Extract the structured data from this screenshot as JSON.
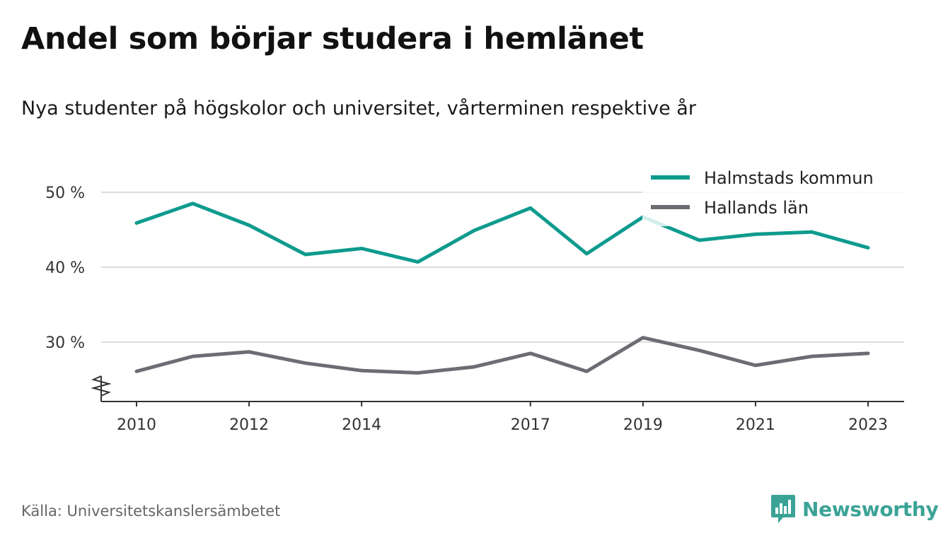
{
  "header": {
    "title": "Andel som börjar studera i hemlänet",
    "subtitle": "Nya studenter på högskolor och universitet, vårterminen respektive år"
  },
  "footer": {
    "source": "Källa: Universitetskanslersämbetet",
    "brand": "Newsworthy",
    "brand_icon": "bar-chart-speech-bubble-icon",
    "brand_color": "#3ba396"
  },
  "chart_data": {
    "type": "line",
    "x": [
      2010,
      2011,
      2012,
      2013,
      2014,
      2015,
      2016,
      2017,
      2018,
      2019,
      2020,
      2021,
      2022,
      2023
    ],
    "series": [
      {
        "name": "Halmstads kommun",
        "color": "#0e9b8e",
        "values": [
          45.9,
          48.5,
          45.6,
          41.7,
          42.5,
          40.7,
          44.9,
          47.9,
          41.8,
          46.7,
          43.6,
          44.4,
          44.7,
          42.6
        ]
      },
      {
        "name": "Hallands län",
        "color": "#6d6c73",
        "values": [
          26.1,
          28.1,
          28.7,
          27.2,
          26.2,
          25.9,
          26.7,
          28.5,
          26.1,
          30.6,
          28.9,
          26.9,
          28.1,
          28.5
        ]
      }
    ],
    "xticks": [
      "2010",
      "2012",
      "2014",
      "2017",
      "2019",
      "2021",
      "2023"
    ],
    "yticks": [
      "30 %",
      "40 %",
      "50 %"
    ],
    "ylim": [
      22,
      52
    ],
    "axis_break": true,
    "grid": true,
    "legend": "top-right"
  }
}
